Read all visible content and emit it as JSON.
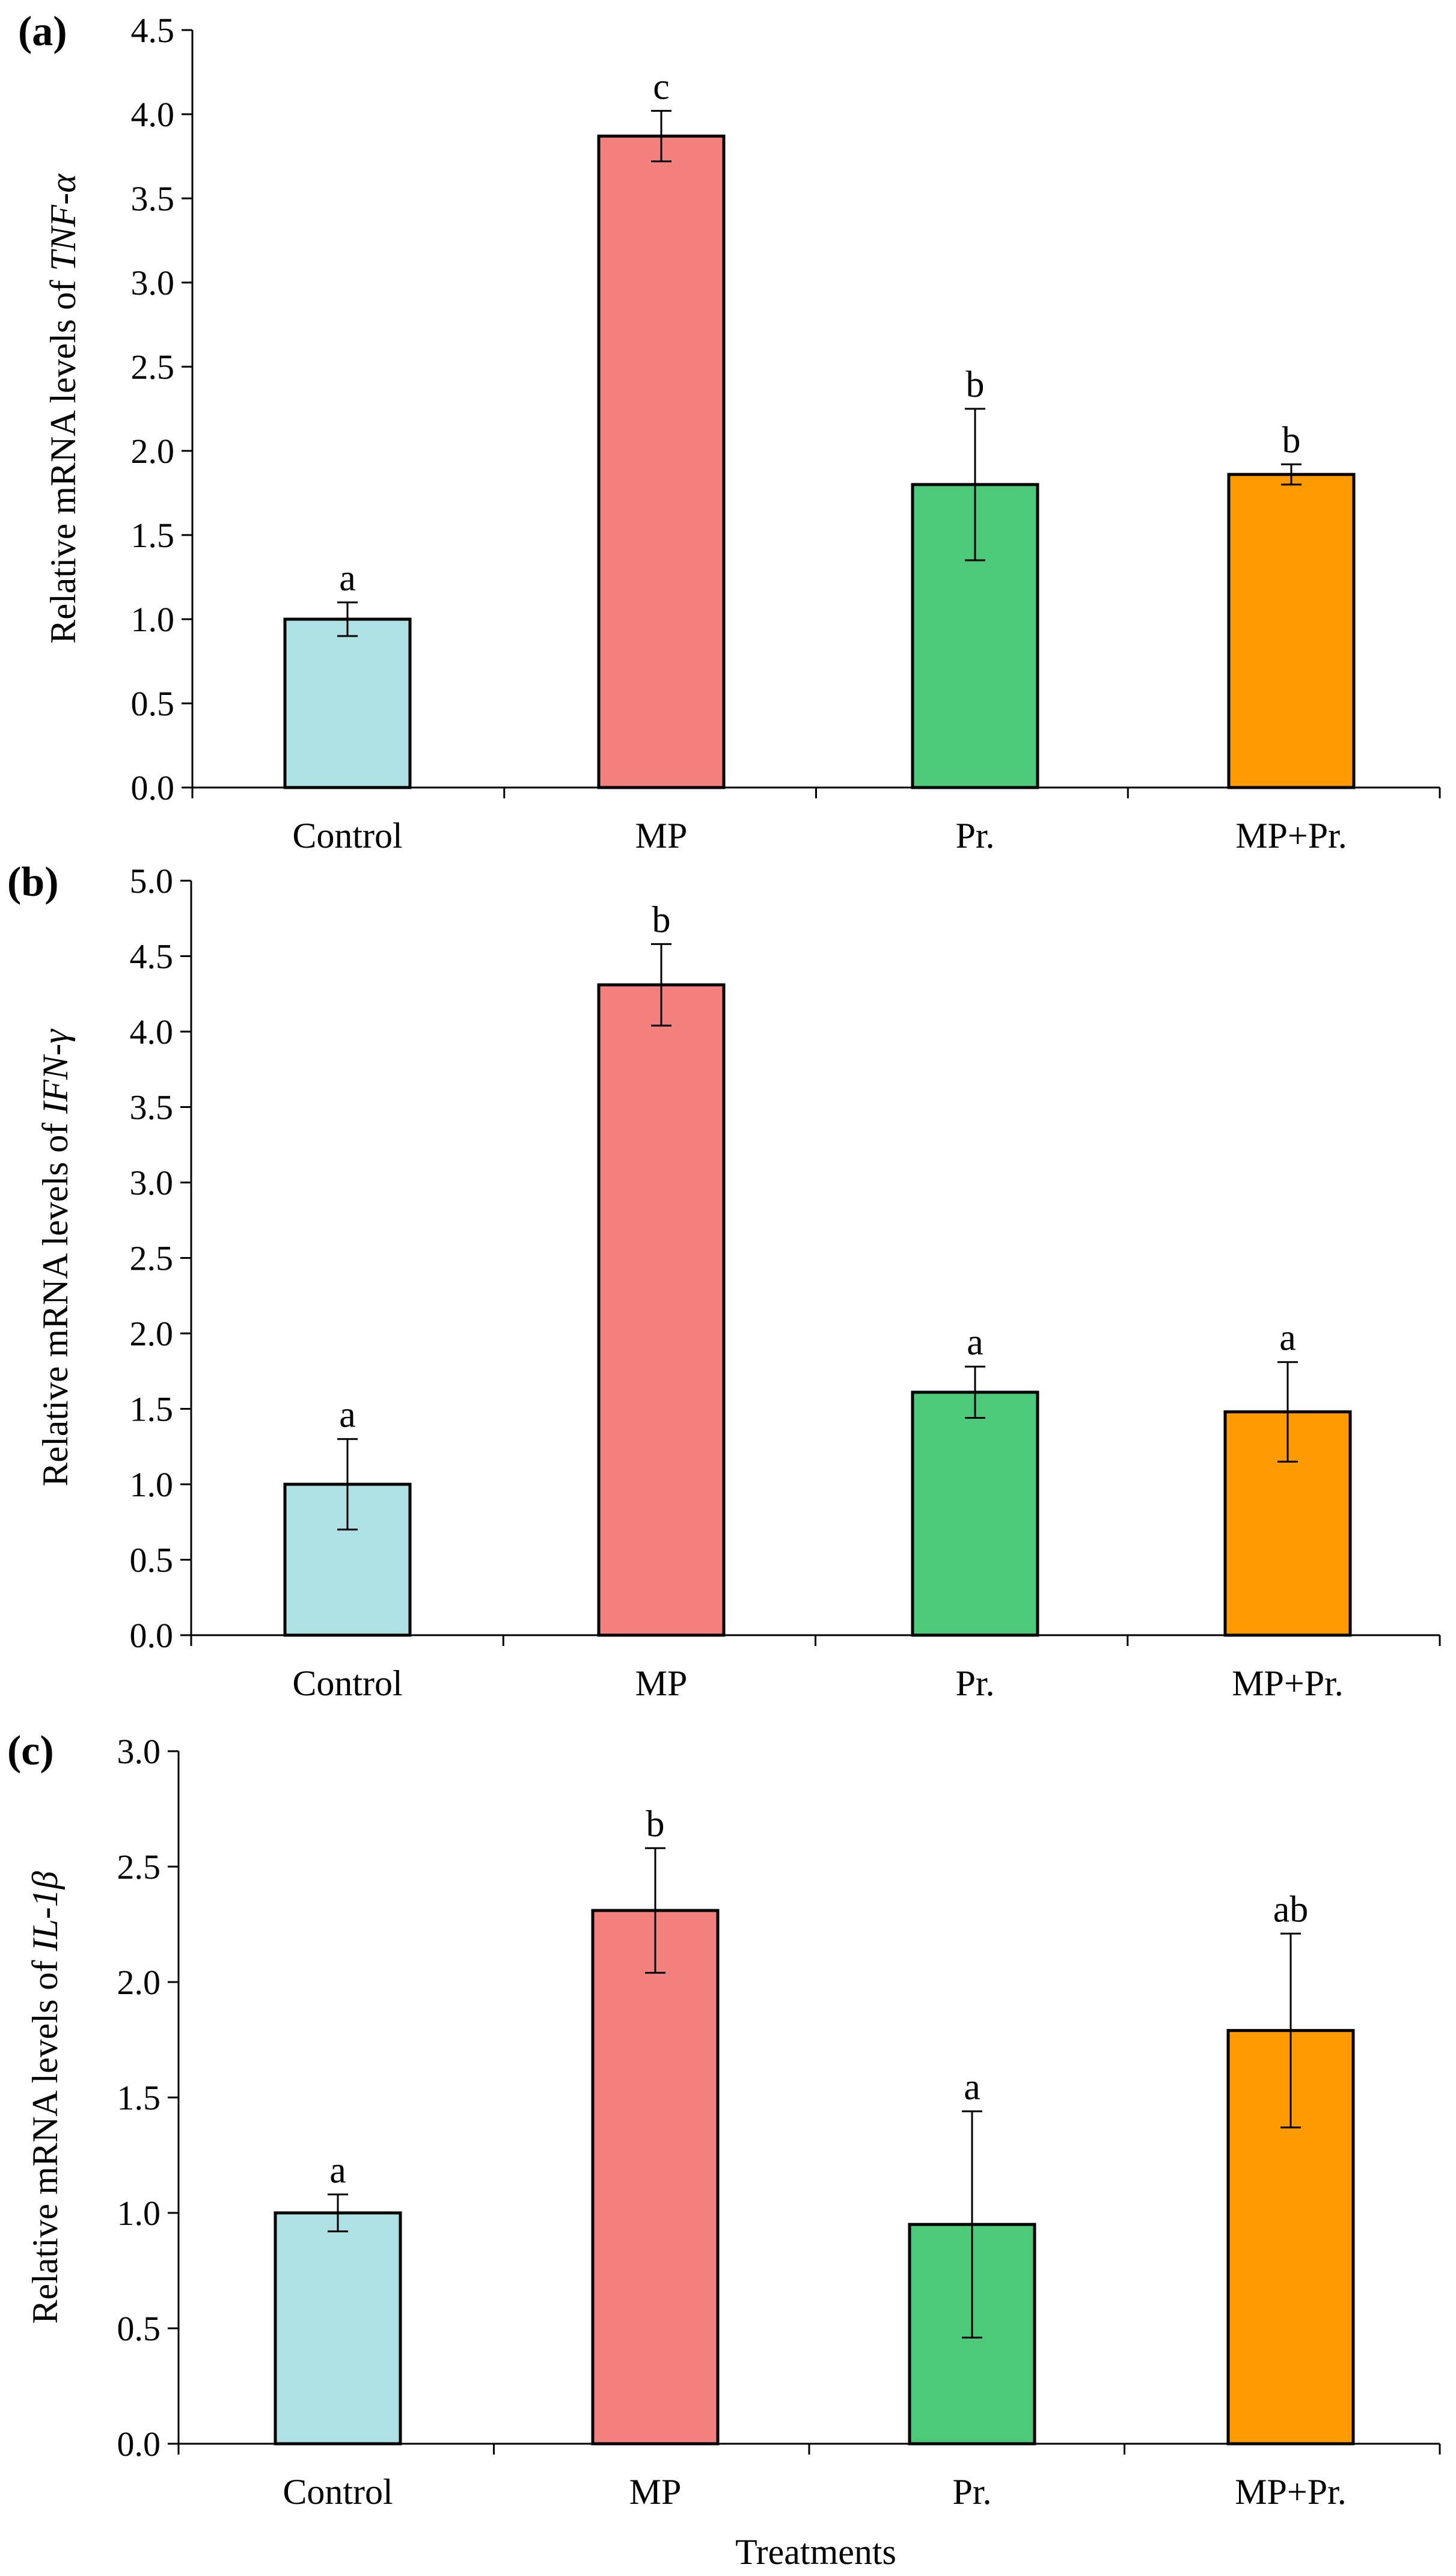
{
  "chart_data": [
    {
      "type": "bar",
      "panel_label": "(a)",
      "ylabel_prefix": "Relative mRNA levels of ",
      "ylabel_gene": "TNF-α",
      "categories": [
        "Control",
        "MP",
        "Pr.",
        "MP+Pr."
      ],
      "values": [
        1.0,
        3.87,
        1.8,
        1.86
      ],
      "errors": [
        0.1,
        0.15,
        0.45,
        0.06
      ],
      "letters": [
        "a",
        "c",
        "b",
        "b"
      ],
      "colors": [
        "#ade1e3",
        "#f58080",
        "#4dc97a",
        "#ff9a00"
      ],
      "ylim": [
        0,
        4.5
      ],
      "yticks": [
        "0.0",
        "0.5",
        "1.0",
        "1.5",
        "2.0",
        "2.5",
        "3.0",
        "3.5",
        "4.0",
        "4.5"
      ]
    },
    {
      "type": "bar",
      "panel_label": "(b)",
      "ylabel_prefix": "Relative mRNA levels of ",
      "ylabel_gene": "IFN-γ",
      "categories": [
        "Control",
        "MP",
        "Pr.",
        "MP+Pr."
      ],
      "values": [
        1.0,
        4.31,
        1.61,
        1.48
      ],
      "errors": [
        0.3,
        0.27,
        0.17,
        0.33
      ],
      "letters": [
        "a",
        "b",
        "a",
        "a"
      ],
      "colors": [
        "#ade1e3",
        "#f58080",
        "#4dc97a",
        "#ff9a00"
      ],
      "ylim": [
        0,
        5.0
      ],
      "yticks": [
        "0.0",
        "0.5",
        "1.0",
        "1.5",
        "2.0",
        "2.5",
        "3.0",
        "3.5",
        "4.0",
        "4.5",
        "5.0"
      ]
    },
    {
      "type": "bar",
      "panel_label": "(c)",
      "ylabel_prefix": "Relative mRNA levels of ",
      "ylabel_gene": "IL-1β",
      "categories": [
        "Control",
        "MP",
        "Pr.",
        "MP+Pr."
      ],
      "values": [
        1.0,
        2.31,
        0.95,
        1.79
      ],
      "errors": [
        0.08,
        0.27,
        0.49,
        0.42
      ],
      "letters": [
        "a",
        "b",
        "a",
        "ab"
      ],
      "colors": [
        "#ade1e3",
        "#f58080",
        "#4dc97a",
        "#ff9a00"
      ],
      "ylim": [
        0,
        3.0
      ],
      "yticks": [
        "0.0",
        "0.5",
        "1.0",
        "1.5",
        "2.0",
        "2.5",
        "3.0"
      ]
    }
  ],
  "xlabel": "Treatments"
}
